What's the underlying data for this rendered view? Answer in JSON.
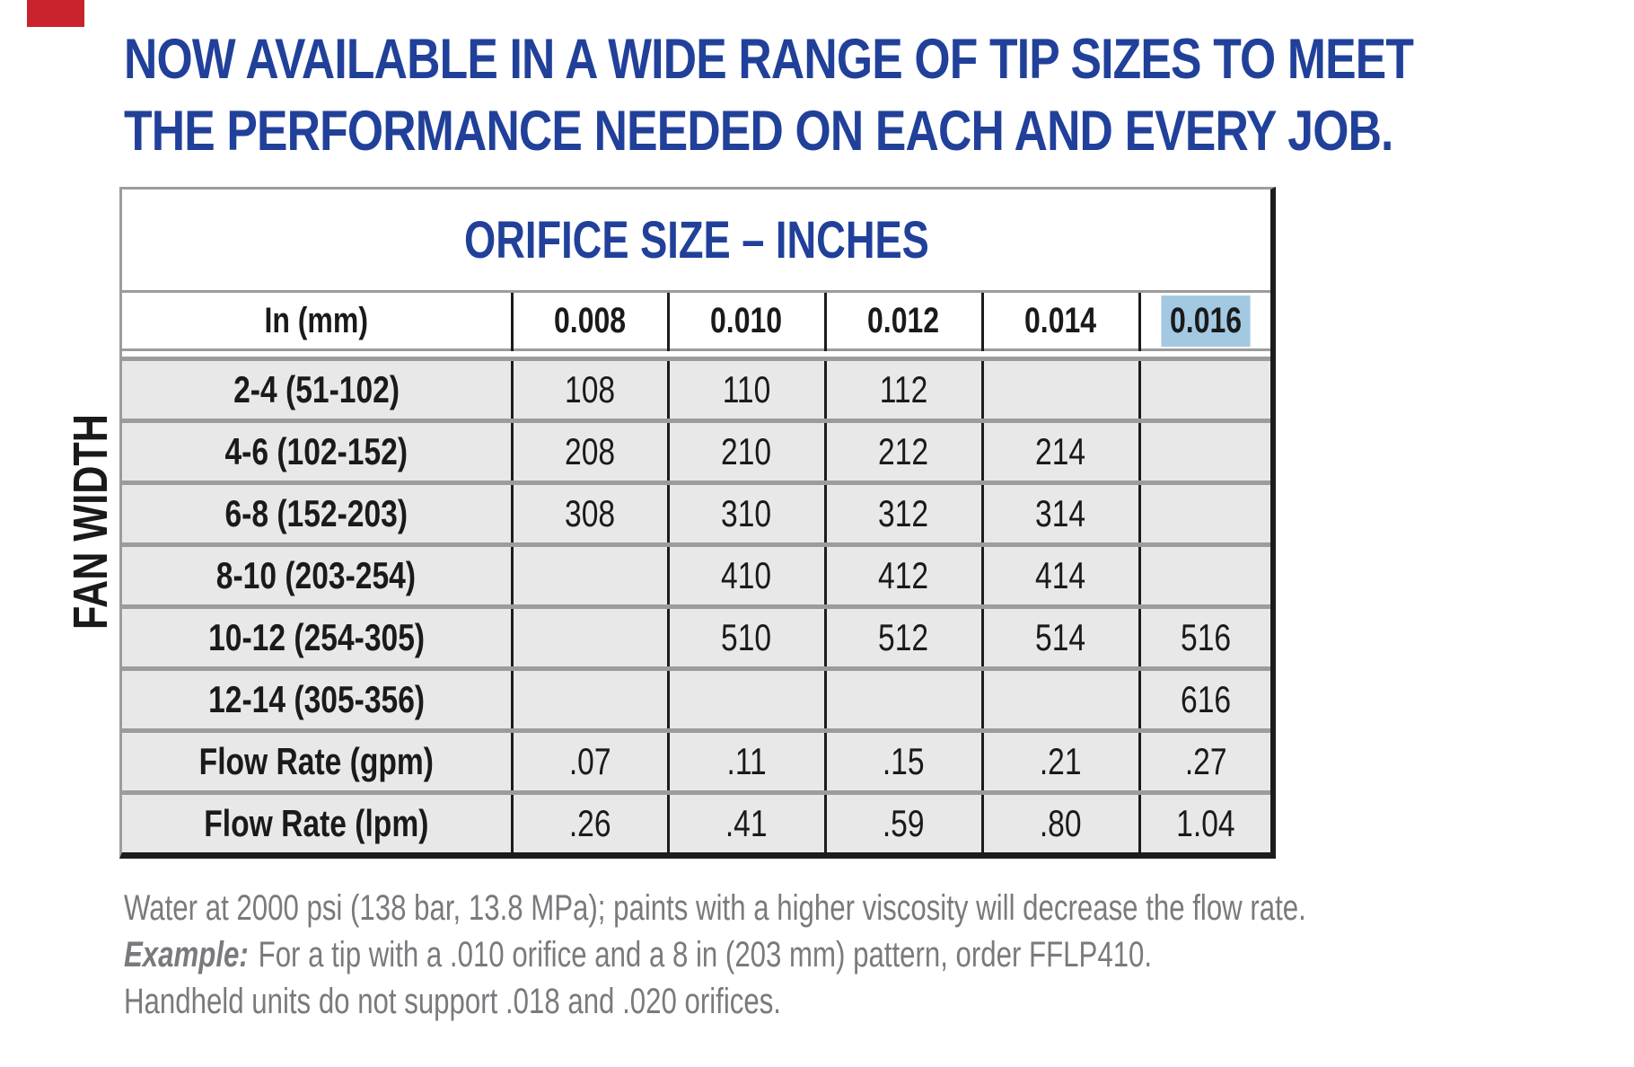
{
  "colors": {
    "heading-blue": "#21409a",
    "highlight-blue": "#a3c9e2",
    "row-bg": "#e8e8e8",
    "line-gray": "#9c9c9c",
    "line-dark": "#1c1c1c",
    "note-gray": "#797a7d",
    "red-mark": "#c8232c"
  },
  "heading": {
    "line1": "NOW AVAILABLE IN A WIDE RANGE OF TIP SIZES TO MEET",
    "line2": "THE PERFORMANCE NEEDED ON EACH AND EVERY JOB."
  },
  "table": {
    "title": "ORIFICE SIZE – INCHES",
    "side_label": "FAN WIDTH",
    "columns": [
      "In (mm)",
      "0.008",
      "0.010",
      "0.012",
      "0.014",
      "0.016"
    ],
    "highlighted_column": "0.016",
    "rows": [
      {
        "label": "2-4 (51-102)",
        "values": [
          "108",
          "110",
          "112",
          "",
          ""
        ]
      },
      {
        "label": "4-6 (102-152)",
        "values": [
          "208",
          "210",
          "212",
          "214",
          ""
        ]
      },
      {
        "label": "6-8 (152-203)",
        "values": [
          "308",
          "310",
          "312",
          "314",
          ""
        ]
      },
      {
        "label": "8-10 (203-254)",
        "values": [
          "",
          "410",
          "412",
          "414",
          ""
        ]
      },
      {
        "label": "10-12 (254-305)",
        "values": [
          "",
          "510",
          "512",
          "514",
          "516"
        ]
      },
      {
        "label": "12-14 (305-356)",
        "values": [
          "",
          "",
          "",
          "",
          "616"
        ]
      },
      {
        "label": "Flow Rate (gpm)",
        "values": [
          ".07",
          ".11",
          ".15",
          ".21",
          ".27"
        ]
      },
      {
        "label": "Flow Rate (lpm)",
        "values": [
          ".26",
          ".41",
          ".59",
          ".80",
          "1.04"
        ]
      }
    ]
  },
  "notes": {
    "line1": "Water at 2000 psi (138 bar, 13.8 MPa); paints with a higher viscosity will decrease the flow rate.",
    "example_label": "Example:",
    "example_text": "For a tip with a .010 orifice and a 8 in (203 mm) pattern, order FFLP410.",
    "line3": "Handheld units do not support .018 and .020 orifices."
  }
}
